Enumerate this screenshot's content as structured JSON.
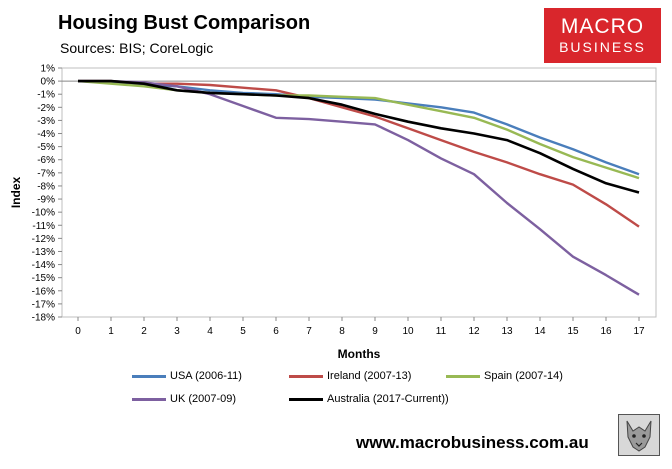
{
  "header": {
    "title": "Housing Bust Comparison",
    "subtitle": "Sources: BIS; CoreLogic"
  },
  "logo": {
    "line1": "MACRO",
    "line2": "BUSINESS",
    "color": "#d9262c"
  },
  "footer": {
    "website": "www.macrobusiness.com.au",
    "mascot_icon": "wolf-icon"
  },
  "chart_data": {
    "type": "line",
    "title": "Housing Bust Comparison",
    "xlabel": "Months",
    "ylabel": "Index",
    "x": [
      0,
      1,
      2,
      3,
      4,
      5,
      6,
      7,
      8,
      9,
      10,
      11,
      12,
      13,
      14,
      15,
      16,
      17
    ],
    "xlim": [
      0,
      17
    ],
    "ylim": [
      -18,
      1
    ],
    "y_ticks": [
      1,
      0,
      -1,
      -2,
      -3,
      -4,
      -5,
      -6,
      -7,
      -8,
      -9,
      -10,
      -11,
      -12,
      -13,
      -14,
      -15,
      -16,
      -17,
      -18
    ],
    "y_tick_suffix": "%",
    "grid": false,
    "legend_position": "bottom",
    "series": [
      {
        "name": "USA (2006-11)",
        "color": "#4a7ebb",
        "values": [
          0,
          -0.1,
          -0.3,
          -0.4,
          -0.7,
          -0.9,
          -1.0,
          -1.2,
          -1.3,
          -1.4,
          -1.7,
          -2.0,
          -2.4,
          -3.3,
          -4.3,
          -5.2,
          -6.2,
          -7.1
        ]
      },
      {
        "name": "Ireland (2007-13)",
        "color": "#be4b48",
        "values": [
          0,
          0,
          -0.2,
          -0.2,
          -0.3,
          -0.5,
          -0.7,
          -1.3,
          -2.0,
          -2.7,
          -3.6,
          -4.5,
          -5.4,
          -6.2,
          -7.1,
          -7.9,
          -9.4,
          -11.1
        ]
      },
      {
        "name": "Spain (2007-14)",
        "color": "#98b954",
        "values": [
          0,
          -0.2,
          -0.4,
          -0.7,
          -0.9,
          -1.0,
          -1.1,
          -1.1,
          -1.2,
          -1.3,
          -1.8,
          -2.3,
          -2.8,
          -3.7,
          -4.8,
          -5.8,
          -6.6,
          -7.4
        ]
      },
      {
        "name": "UK (2007-09)",
        "color": "#7d60a0",
        "values": [
          0,
          0,
          -0.1,
          -0.4,
          -1.0,
          -1.9,
          -2.8,
          -2.9,
          -3.1,
          -3.3,
          -4.5,
          -5.9,
          -7.1,
          -9.3,
          -11.3,
          -13.4,
          -14.8,
          -16.3
        ]
      },
      {
        "name": "Australia (2017-Current))",
        "color": "#000000",
        "values": [
          0,
          0,
          -0.2,
          -0.7,
          -0.9,
          -1.0,
          -1.1,
          -1.3,
          -1.8,
          -2.5,
          -3.1,
          -3.6,
          -4.0,
          -4.5,
          -5.5,
          -6.7,
          -7.8,
          -8.5
        ]
      }
    ]
  }
}
